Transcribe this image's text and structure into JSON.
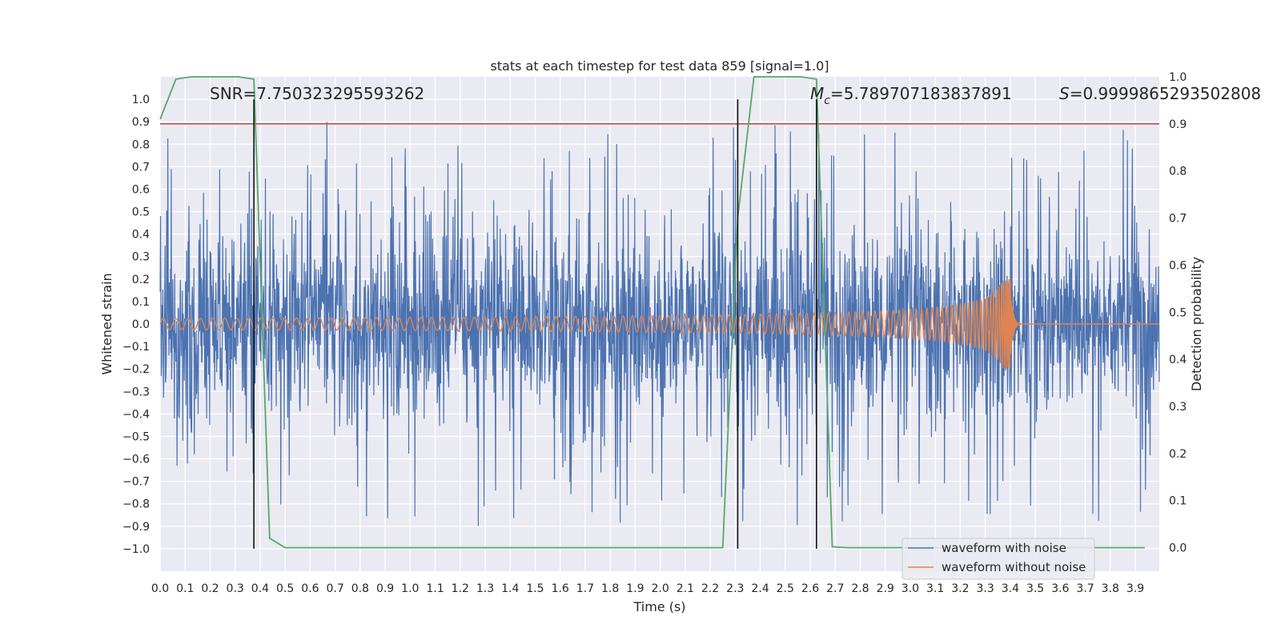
{
  "chart_data": {
    "type": "line",
    "title": "stats at each timestep for test data 859 [signal=1.0]",
    "xlabel": "Time (s)",
    "ylabel": "Whitened strain",
    "y2label": "Detection probability",
    "xlim": [
      0.0,
      3.996
    ],
    "ylim": [
      -1.1,
      1.1
    ],
    "y2lim": [
      -0.05,
      1.0
    ],
    "x_ticks": [
      "0.0",
      "0.1",
      "0.2",
      "0.3",
      "0.4",
      "0.5",
      "0.6",
      "0.7",
      "0.8",
      "0.9",
      "1.0",
      "1.1",
      "1.2",
      "1.3",
      "1.4",
      "1.5",
      "1.6",
      "1.7",
      "1.8",
      "1.9",
      "2.0",
      "2.1",
      "2.2",
      "2.3",
      "2.4",
      "2.5",
      "2.6",
      "2.7",
      "2.8",
      "2.9",
      "3.0",
      "3.1",
      "3.2",
      "3.3",
      "3.4",
      "3.5",
      "3.6",
      "3.7",
      "3.8",
      "3.9"
    ],
    "y_ticks": [
      "1.0",
      "0.9",
      "0.8",
      "0.7",
      "0.6",
      "0.5",
      "0.4",
      "0.3",
      "0.2",
      "0.1",
      "0.0",
      "−0.1",
      "−0.2",
      "−0.3",
      "−0.4",
      "−0.5",
      "−0.6",
      "−0.7",
      "−0.8",
      "−0.9",
      "−1.0"
    ],
    "y2_ticks": [
      "1.0",
      "0.9",
      "0.8",
      "0.7",
      "0.6",
      "0.5",
      "0.4",
      "0.3",
      "0.2",
      "0.1",
      "0.0"
    ],
    "grid": true,
    "legend_position": "bottom-right",
    "series": [
      {
        "name": "waveform with noise",
        "axis": "left",
        "color": "#4c72b0",
        "description": "dense noisy strain, roughly ±0.5 with spikes to ±1.0 over 0–4 s"
      },
      {
        "name": "waveform without noise",
        "axis": "left",
        "color": "#dd8452",
        "chirp": {
          "start": 0.0,
          "merger": 3.4,
          "amp_start": 0.025,
          "amp_merger": 0.2,
          "freq_start": 20
        }
      },
      {
        "axis": "right",
        "color": "#55a868",
        "x": [
          0.0,
          0.063,
          0.125,
          0.188,
          0.25,
          0.313,
          0.375,
          0.438,
          0.5,
          0.75,
          1.0,
          1.25,
          1.5,
          1.75,
          2.0,
          2.25,
          2.31,
          2.375,
          2.438,
          2.5,
          2.563,
          2.625,
          2.688,
          2.75,
          3.0,
          3.25,
          3.5,
          3.75,
          3.938
        ],
        "y": [
          0.91,
          0.995,
          1.0,
          1.0,
          1.0,
          1.0,
          0.995,
          0.02,
          0.0,
          0.0,
          0.0,
          0.0,
          0.0,
          0.0,
          0.0,
          0.0,
          0.7,
          1.0,
          1.0,
          1.0,
          1.0,
          0.995,
          0.002,
          0.0,
          0.0,
          0.0,
          0.0,
          0.0,
          0.0
        ]
      }
    ],
    "threshold_line": {
      "axis": "right",
      "value": 0.9,
      "color": "#c44e52"
    },
    "vertical_lines": [
      0.375,
      2.31,
      2.625
    ],
    "vertical_line_range": [
      -1.0,
      1.0
    ],
    "annotations": {
      "snr_text": "SNR=7.750323295593262",
      "mc_symbol": "M",
      "mc_sub": "c",
      "mc_value": "=5.789707183837891",
      "s_symbol": "S",
      "s_value": "=0.9999865293502808"
    }
  }
}
